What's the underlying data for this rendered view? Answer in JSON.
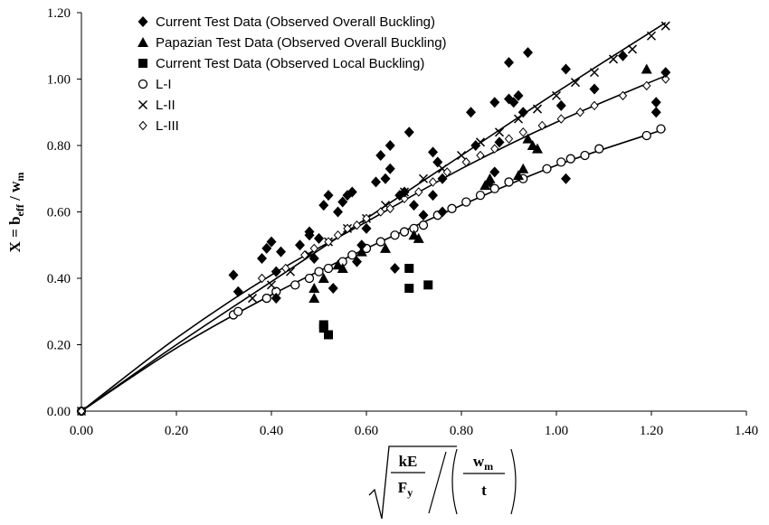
{
  "chart_data": {
    "type": "scatter",
    "xlim": [
      0,
      1.4
    ],
    "ylim": [
      0,
      1.2
    ],
    "x_ticks": [
      "0.00",
      "0.20",
      "0.40",
      "0.60",
      "0.80",
      "1.00",
      "1.20",
      "1.40"
    ],
    "y_ticks": [
      "0.00",
      "0.20",
      "0.40",
      "0.60",
      "0.80",
      "1.00",
      "1.20"
    ],
    "ylabel": {
      "prefix": "X = b",
      "eff_sub": "eff",
      "slash": " / w",
      "m_sub": "m"
    },
    "xlabel": {
      "kE": "kE",
      "Fy": "F",
      "y_sub": "y",
      "wm": "w",
      "m_sub": "m",
      "t": "t"
    },
    "legend_position": "top-left",
    "series": [
      {
        "name": "Current Test Data (Observed Overall Buckling)",
        "marker": "diamond-filled",
        "points": [
          [
            0.32,
            0.41
          ],
          [
            0.33,
            0.36
          ],
          [
            0.38,
            0.46
          ],
          [
            0.39,
            0.49
          ],
          [
            0.4,
            0.51
          ],
          [
            0.41,
            0.34
          ],
          [
            0.41,
            0.42
          ],
          [
            0.42,
            0.48
          ],
          [
            0.46,
            0.5
          ],
          [
            0.48,
            0.53
          ],
          [
            0.48,
            0.54
          ],
          [
            0.49,
            0.46
          ],
          [
            0.5,
            0.52
          ],
          [
            0.51,
            0.62
          ],
          [
            0.52,
            0.65
          ],
          [
            0.53,
            0.37
          ],
          [
            0.54,
            0.6
          ],
          [
            0.55,
            0.63
          ],
          [
            0.56,
            0.65
          ],
          [
            0.57,
            0.66
          ],
          [
            0.58,
            0.45
          ],
          [
            0.59,
            0.5
          ],
          [
            0.6,
            0.55
          ],
          [
            0.62,
            0.69
          ],
          [
            0.63,
            0.77
          ],
          [
            0.64,
            0.7
          ],
          [
            0.65,
            0.8
          ],
          [
            0.65,
            0.73
          ],
          [
            0.66,
            0.43
          ],
          [
            0.67,
            0.65
          ],
          [
            0.68,
            0.66
          ],
          [
            0.69,
            0.84
          ],
          [
            0.7,
            0.62
          ],
          [
            0.72,
            0.59
          ],
          [
            0.74,
            0.78
          ],
          [
            0.74,
            0.65
          ],
          [
            0.75,
            0.75
          ],
          [
            0.76,
            0.7
          ],
          [
            0.76,
            0.6
          ],
          [
            0.82,
            0.9
          ],
          [
            0.83,
            0.8
          ],
          [
            0.86,
            0.69
          ],
          [
            0.87,
            0.72
          ],
          [
            0.87,
            0.93
          ],
          [
            0.88,
            0.81
          ],
          [
            0.9,
            1.05
          ],
          [
            0.9,
            0.94
          ],
          [
            0.91,
            0.93
          ],
          [
            0.92,
            0.95
          ],
          [
            0.93,
            0.9
          ],
          [
            0.94,
            1.08
          ],
          [
            1.01,
            0.92
          ],
          [
            1.02,
            0.7
          ],
          [
            1.02,
            1.03
          ],
          [
            1.08,
            0.97
          ],
          [
            1.14,
            1.07
          ],
          [
            1.21,
            0.93
          ],
          [
            1.21,
            0.9
          ],
          [
            1.23,
            1.02
          ]
        ]
      },
      {
        "name": "Papazian Test Data (Observed Overall Buckling)",
        "marker": "triangle-filled",
        "points": [
          [
            0.49,
            0.37
          ],
          [
            0.49,
            0.34
          ],
          [
            0.51,
            0.4
          ],
          [
            0.54,
            0.44
          ],
          [
            0.55,
            0.43
          ],
          [
            0.59,
            0.48
          ],
          [
            0.64,
            0.49
          ],
          [
            0.7,
            0.53
          ],
          [
            0.71,
            0.52
          ],
          [
            0.85,
            0.68
          ],
          [
            0.86,
            0.7
          ],
          [
            0.92,
            0.71
          ],
          [
            0.93,
            0.73
          ],
          [
            0.94,
            0.82
          ],
          [
            0.95,
            0.8
          ],
          [
            0.96,
            0.79
          ],
          [
            1.19,
            1.03
          ]
        ]
      },
      {
        "name": "Current Test Data (Observed Local Buckling)",
        "marker": "square-filled",
        "points": [
          [
            0.51,
            0.26
          ],
          [
            0.51,
            0.25
          ],
          [
            0.52,
            0.23
          ],
          [
            0.69,
            0.43
          ],
          [
            0.69,
            0.37
          ],
          [
            0.73,
            0.38
          ]
        ]
      },
      {
        "name": "L-I",
        "marker": "circle-open",
        "points": [
          [
            0.0,
            0.0
          ],
          [
            0.32,
            0.29
          ],
          [
            0.33,
            0.3
          ],
          [
            0.39,
            0.34
          ],
          [
            0.41,
            0.36
          ],
          [
            0.45,
            0.38
          ],
          [
            0.48,
            0.4
          ],
          [
            0.5,
            0.42
          ],
          [
            0.52,
            0.43
          ],
          [
            0.55,
            0.45
          ],
          [
            0.57,
            0.47
          ],
          [
            0.6,
            0.49
          ],
          [
            0.63,
            0.51
          ],
          [
            0.66,
            0.53
          ],
          [
            0.68,
            0.54
          ],
          [
            0.7,
            0.55
          ],
          [
            0.72,
            0.56
          ],
          [
            0.75,
            0.59
          ],
          [
            0.78,
            0.61
          ],
          [
            0.81,
            0.63
          ],
          [
            0.84,
            0.65
          ],
          [
            0.87,
            0.67
          ],
          [
            0.9,
            0.69
          ],
          [
            0.93,
            0.7
          ],
          [
            0.98,
            0.73
          ],
          [
            1.01,
            0.75
          ],
          [
            1.03,
            0.76
          ],
          [
            1.06,
            0.77
          ],
          [
            1.09,
            0.79
          ],
          [
            1.19,
            0.83
          ],
          [
            1.22,
            0.85
          ]
        ],
        "curve": [
          [
            0.0,
            0.0
          ],
          [
            0.2,
            0.19
          ],
          [
            0.4,
            0.35
          ],
          [
            0.6,
            0.49
          ],
          [
            0.8,
            0.62
          ],
          [
            1.0,
            0.74
          ],
          [
            1.23,
            0.85
          ]
        ]
      },
      {
        "name": "L-II",
        "marker": "cross",
        "points": [
          [
            0.0,
            0.0
          ],
          [
            0.36,
            0.34
          ],
          [
            0.4,
            0.38
          ],
          [
            0.44,
            0.42
          ],
          [
            0.48,
            0.47
          ],
          [
            0.52,
            0.51
          ],
          [
            0.56,
            0.55
          ],
          [
            0.6,
            0.58
          ],
          [
            0.64,
            0.62
          ],
          [
            0.68,
            0.66
          ],
          [
            0.72,
            0.7
          ],
          [
            0.76,
            0.73
          ],
          [
            0.8,
            0.77
          ],
          [
            0.84,
            0.81
          ],
          [
            0.88,
            0.84
          ],
          [
            0.92,
            0.88
          ],
          [
            0.96,
            0.91
          ],
          [
            1.0,
            0.95
          ],
          [
            1.04,
            0.99
          ],
          [
            1.08,
            1.02
          ],
          [
            1.12,
            1.06
          ],
          [
            1.16,
            1.09
          ],
          [
            1.2,
            1.13
          ],
          [
            1.23,
            1.16
          ]
        ],
        "curve": [
          [
            0.0,
            0.0
          ],
          [
            0.2,
            0.2
          ],
          [
            0.4,
            0.39
          ],
          [
            0.6,
            0.58
          ],
          [
            0.8,
            0.77
          ],
          [
            1.0,
            0.96
          ],
          [
            1.23,
            1.17
          ]
        ]
      },
      {
        "name": "L-III",
        "marker": "diamond-open",
        "points": [
          [
            0.0,
            0.0
          ],
          [
            0.38,
            0.4
          ],
          [
            0.41,
            0.42
          ],
          [
            0.43,
            0.43
          ],
          [
            0.47,
            0.47
          ],
          [
            0.49,
            0.49
          ],
          [
            0.52,
            0.51
          ],
          [
            0.54,
            0.53
          ],
          [
            0.56,
            0.55
          ],
          [
            0.58,
            0.56
          ],
          [
            0.6,
            0.58
          ],
          [
            0.63,
            0.6
          ],
          [
            0.65,
            0.61
          ],
          [
            0.68,
            0.64
          ],
          [
            0.71,
            0.66
          ],
          [
            0.74,
            0.69
          ],
          [
            0.77,
            0.72
          ],
          [
            0.81,
            0.75
          ],
          [
            0.84,
            0.77
          ],
          [
            0.87,
            0.79
          ],
          [
            0.9,
            0.82
          ],
          [
            0.93,
            0.84
          ],
          [
            0.97,
            0.86
          ],
          [
            1.01,
            0.88
          ],
          [
            1.05,
            0.9
          ],
          [
            1.08,
            0.92
          ],
          [
            1.14,
            0.95
          ],
          [
            1.19,
            0.98
          ],
          [
            1.23,
            1.0
          ]
        ],
        "curve": [
          [
            0.0,
            0.0
          ],
          [
            0.2,
            0.22
          ],
          [
            0.4,
            0.41
          ],
          [
            0.6,
            0.57
          ],
          [
            0.8,
            0.73
          ],
          [
            1.0,
            0.87
          ],
          [
            1.23,
            1.01
          ]
        ]
      }
    ]
  }
}
